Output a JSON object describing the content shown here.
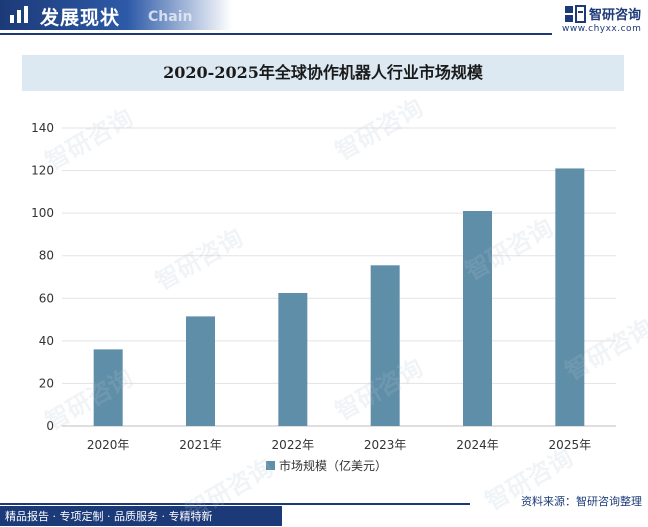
{
  "header": {
    "section_title": "发展现状",
    "section_subtitle": "Chain",
    "brand_name": "智研咨询",
    "brand_url": "www.chyxx.com"
  },
  "colors": {
    "bar": "#5f8fa8",
    "brand": "#1c3a78",
    "title_band": "#dce9f3"
  },
  "chart_data": {
    "type": "bar",
    "title": "2020-2025年全球协作机器人行业市场规模",
    "categories": [
      "2020年",
      "2021年",
      "2022年",
      "2023年",
      "2024年",
      "2025年"
    ],
    "series": [
      {
        "name": "市场规模（亿美元）",
        "values": [
          36,
          51.5,
          62.5,
          75.5,
          101,
          121
        ]
      }
    ],
    "ylim": [
      0,
      140
    ],
    "yticks": [
      0,
      20,
      40,
      60,
      80,
      100,
      120,
      140
    ],
    "grid": true,
    "legend": "bottom"
  },
  "footer": {
    "tagline": "精品报告 · 专项定制 · 品质服务 · 专精特新",
    "source": "资料来源：智研咨询整理"
  },
  "watermark": "智研咨询"
}
